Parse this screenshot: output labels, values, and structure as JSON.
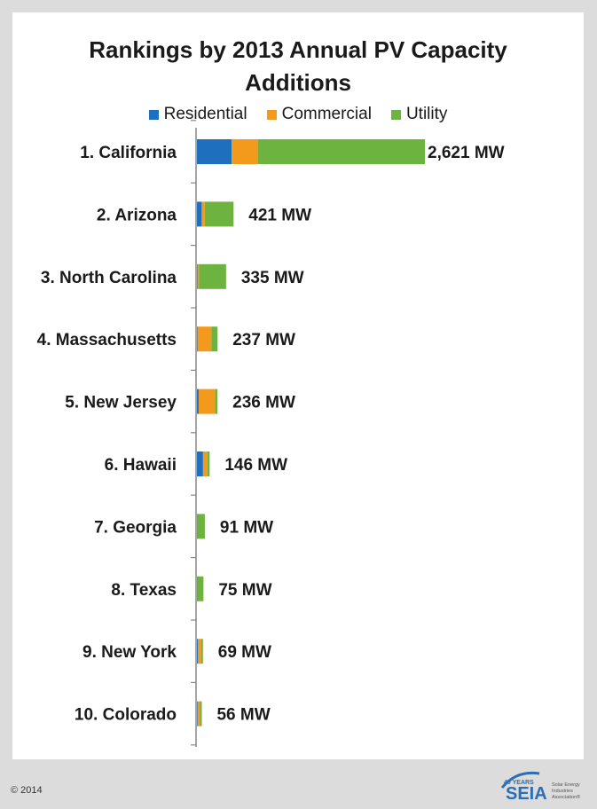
{
  "title_lines": [
    "Rankings by 2013 Annual PV Capacity",
    "Additions"
  ],
  "legend": [
    {
      "label": "Residential",
      "color": "#1f6fbf"
    },
    {
      "label": "Commercial",
      "color": "#f39a1c"
    },
    {
      "label": "Utility",
      "color": "#6db33f"
    }
  ],
  "footer": "© 2014",
  "logo": {
    "badge": "40 YEARS",
    "mark": "SEIA",
    "tagline_lines": [
      "Solar Energy",
      "Industries",
      "Association®"
    ]
  },
  "chart_data": {
    "type": "bar",
    "orientation": "horizontal",
    "stacked": true,
    "title": "Rankings by 2013 Annual PV Capacity Additions",
    "categories": [
      "1. California",
      "2. Arizona",
      "3. North Carolina",
      "4. Massachusetts",
      "5. New Jersey",
      "6. Hawaii",
      "7. Georgia",
      "8. Texas",
      "9. New York",
      "10. Colorado"
    ],
    "series": [
      {
        "name": "Residential",
        "color": "#1f6fbf",
        "values": [
          400,
          55,
          5,
          5,
          20,
          70,
          3,
          3,
          10,
          8
        ]
      },
      {
        "name": "Commercial",
        "color": "#f39a1c",
        "values": [
          300,
          35,
          20,
          162,
          190,
          50,
          3,
          2,
          39,
          28
        ]
      },
      {
        "name": "Utility",
        "color": "#6db33f",
        "values": [
          1921,
          331,
          310,
          70,
          26,
          26,
          85,
          70,
          20,
          20
        ]
      }
    ],
    "totals": [
      2621,
      421,
      335,
      237,
      236,
      146,
      91,
      75,
      69,
      56
    ],
    "data_labels": [
      "2,621 MW",
      "421 MW",
      "335 MW",
      "237 MW",
      "236 MW",
      "146 MW",
      "91 MW",
      "75 MW",
      "69 MW",
      "56 MW"
    ],
    "xlim": [
      0,
      2621
    ],
    "legend_position": "top",
    "grid": false
  }
}
